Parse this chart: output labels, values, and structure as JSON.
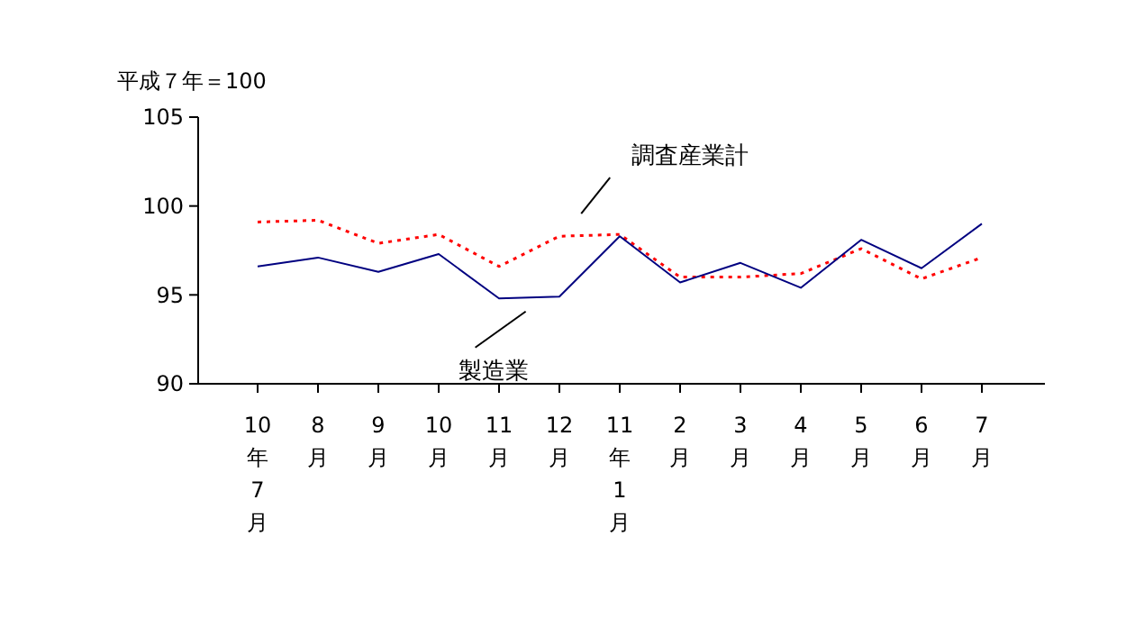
{
  "chart_data": {
    "type": "line",
    "ylabel": "平成７年＝100",
    "categories": [
      "10年7月",
      "8月",
      "9月",
      "10月",
      "11月",
      "12月",
      "11年1月",
      "2月",
      "3月",
      "4月",
      "5月",
      "6月",
      "7月"
    ],
    "series": [
      {
        "name": "調査産業計",
        "color": "#ff0000",
        "line_style": "dotted",
        "values": [
          99.1,
          99.2,
          97.9,
          98.4,
          96.6,
          98.3,
          98.4,
          96.0,
          96.0,
          96.2,
          97.6,
          95.9,
          97.1
        ]
      },
      {
        "name": "製造業",
        "color": "#000080",
        "line_style": "solid",
        "values": [
          96.6,
          97.1,
          96.3,
          97.3,
          94.8,
          94.9,
          98.3,
          95.7,
          96.8,
          95.4,
          98.1,
          96.5,
          99.0
        ]
      }
    ],
    "ylim": [
      90,
      105
    ],
    "yticks": [
      90,
      95,
      100,
      105
    ],
    "grid": false,
    "marker": "none"
  }
}
